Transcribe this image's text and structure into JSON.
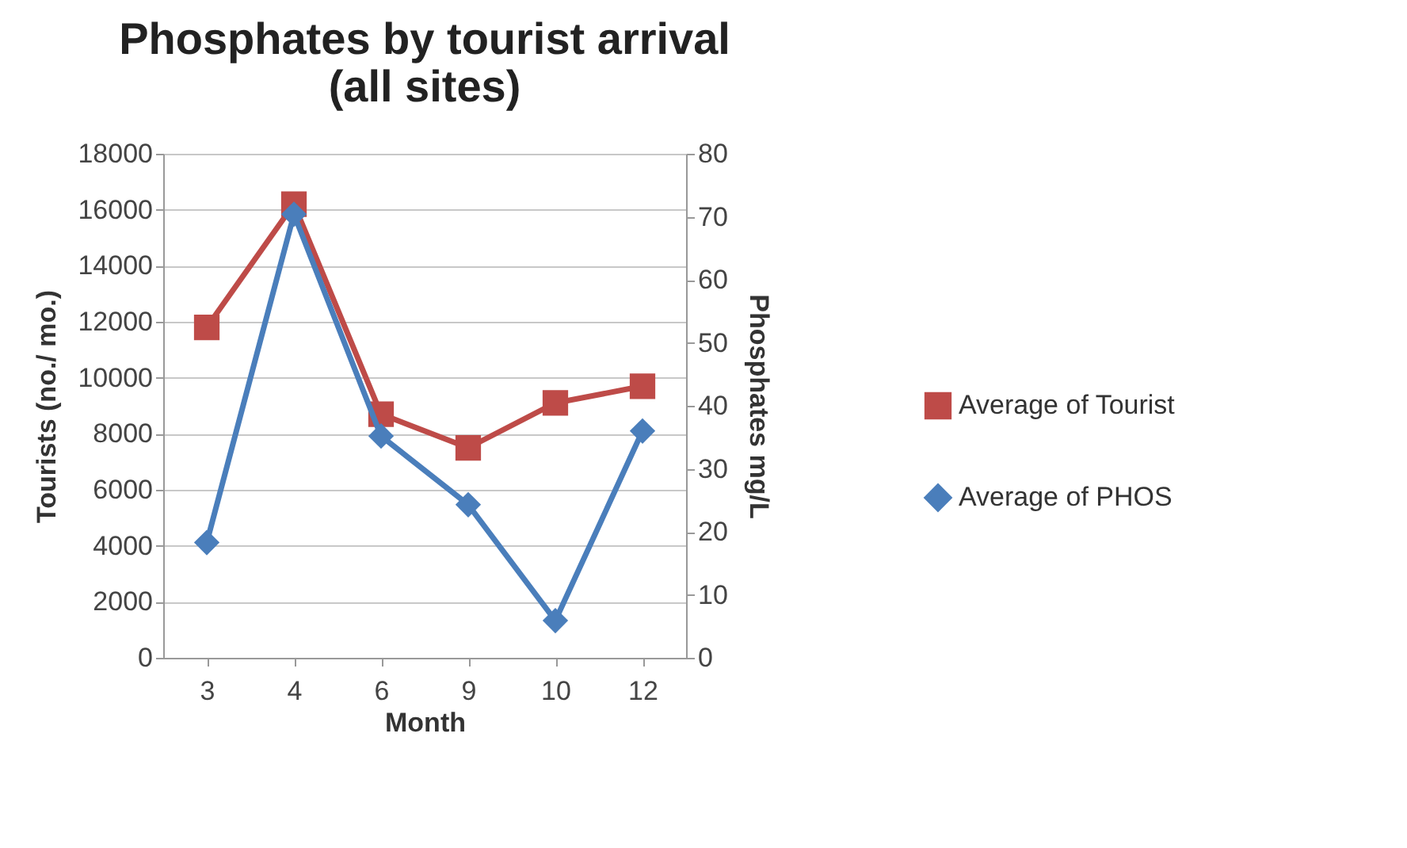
{
  "chart_data": {
    "type": "line",
    "title": "Phosphates by tourist arrival\n(all sites)",
    "xlabel": "Month",
    "ylabel": "Tourists (no./ mo.)",
    "y2label": "Phosphates mg/L",
    "categories": [
      "3",
      "4",
      "6",
      "9",
      "10",
      "12"
    ],
    "series": [
      {
        "name": "Average of Tourist",
        "color": "#be4b48",
        "marker": "square",
        "values": [
          11800,
          16200,
          8700,
          7500,
          9100,
          9700
        ]
      },
      {
        "name": "Average of PHOS",
        "color": "#4a7ebb",
        "marker": "diamond",
        "axis": "y2",
        "values": [
          18.3,
          70.4,
          35.2,
          24.3,
          5.9,
          36.0
        ]
      }
    ],
    "ylim": [
      0,
      18000
    ],
    "yticks": [
      0,
      2000,
      4000,
      6000,
      8000,
      10000,
      12000,
      14000,
      16000,
      18000
    ],
    "y2lim": [
      0,
      80
    ],
    "y2ticks": [
      0,
      10,
      20,
      30,
      40,
      50,
      60,
      70,
      80
    ],
    "grid": "y",
    "legend": "right"
  }
}
